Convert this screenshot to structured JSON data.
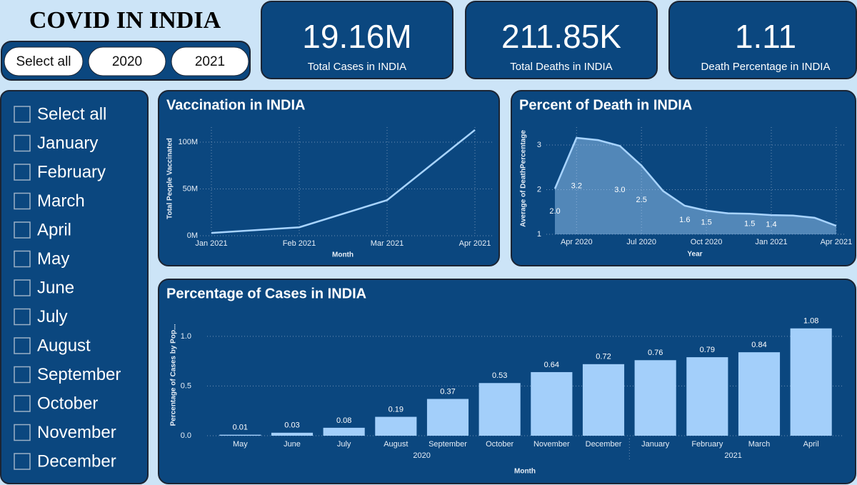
{
  "header": {
    "title": "COVID IN INDIA",
    "year_buttons": [
      "Select all",
      "2020",
      "2021"
    ]
  },
  "kpis": [
    {
      "value": "19.16M",
      "label": "Total Cases in INDIA"
    },
    {
      "value": "211.85K",
      "label": "Total Deaths in INDIA"
    },
    {
      "value": "1.11",
      "label": "Death Percentage in INDIA"
    }
  ],
  "month_slicer": [
    "Select all",
    "January",
    "February",
    "March",
    "April",
    "May",
    "June",
    "July",
    "August",
    "September",
    "October",
    "November",
    "December"
  ],
  "chart_data": [
    {
      "type": "line",
      "title": "Vaccination in INDIA",
      "x_label": "Month",
      "y_label": "Total People Vaccinated",
      "x": [
        "Jan 2021",
        "Feb 2021",
        "Mar 2021",
        "Apr 2021"
      ],
      "values": [
        3000000,
        9000000,
        38000000,
        113000000
      ],
      "color": "#a8d4ff",
      "ylim": [
        0,
        116000000
      ],
      "yticks": [
        {
          "value": 0,
          "label": "0M"
        },
        {
          "value": 50000000,
          "label": "50M"
        },
        {
          "value": 100000000,
          "label": "100M"
        }
      ],
      "grid": true
    },
    {
      "type": "area",
      "title": "Percent of Death in INDIA",
      "x_label": "Year",
      "y_label": "Average of DeathPercentage",
      "x": [
        "Mar 2020",
        "Apr 2020",
        "May 2020",
        "Jun 2020",
        "Jul 2020",
        "Aug 2020",
        "Sep 2020",
        "Oct 2020",
        "Nov 2020",
        "Dec 2020",
        "Jan 2021",
        "Feb 2021",
        "Mar 2021",
        "Apr 2021"
      ],
      "xticks": [
        "Apr 2020",
        "Jul 2020",
        "Oct 2020",
        "Jan 2021",
        "Apr 2021"
      ],
      "values": [
        2.02,
        3.16,
        3.11,
        2.98,
        2.54,
        1.97,
        1.64,
        1.53,
        1.47,
        1.46,
        1.43,
        1.42,
        1.37,
        1.19
      ],
      "value_labels": [
        "2.0",
        "3.2",
        null,
        "3.0",
        "2.5",
        null,
        "1.6",
        "1.5",
        null,
        "1.5",
        "1.4",
        null,
        null,
        null
      ],
      "color": "#a8d4ff",
      "ylim": [
        1,
        3.4
      ],
      "yticks": [
        1,
        2,
        3
      ],
      "grid": true
    },
    {
      "type": "bar",
      "title": "Percentage of Cases in INDIA",
      "x_label": "Month",
      "y_label": "Percentage of Cases by Pop...",
      "categories": [
        "May",
        "June",
        "July",
        "August",
        "September",
        "October",
        "November",
        "December",
        "January",
        "February",
        "March",
        "April"
      ],
      "groups": [
        {
          "label": "2020",
          "size": 8
        },
        {
          "label": "2021",
          "size": 4
        }
      ],
      "values": [
        0.01,
        0.03,
        0.08,
        0.19,
        0.37,
        0.53,
        0.64,
        0.72,
        0.76,
        0.79,
        0.84,
        1.08
      ],
      "color": "#a3cffa",
      "ylim": [
        0,
        1.15
      ],
      "yticks": [
        {
          "value": 0,
          "label": "0.0"
        },
        0.5,
        {
          "value": 1,
          "label": "1.0"
        }
      ],
      "grid": true
    }
  ]
}
